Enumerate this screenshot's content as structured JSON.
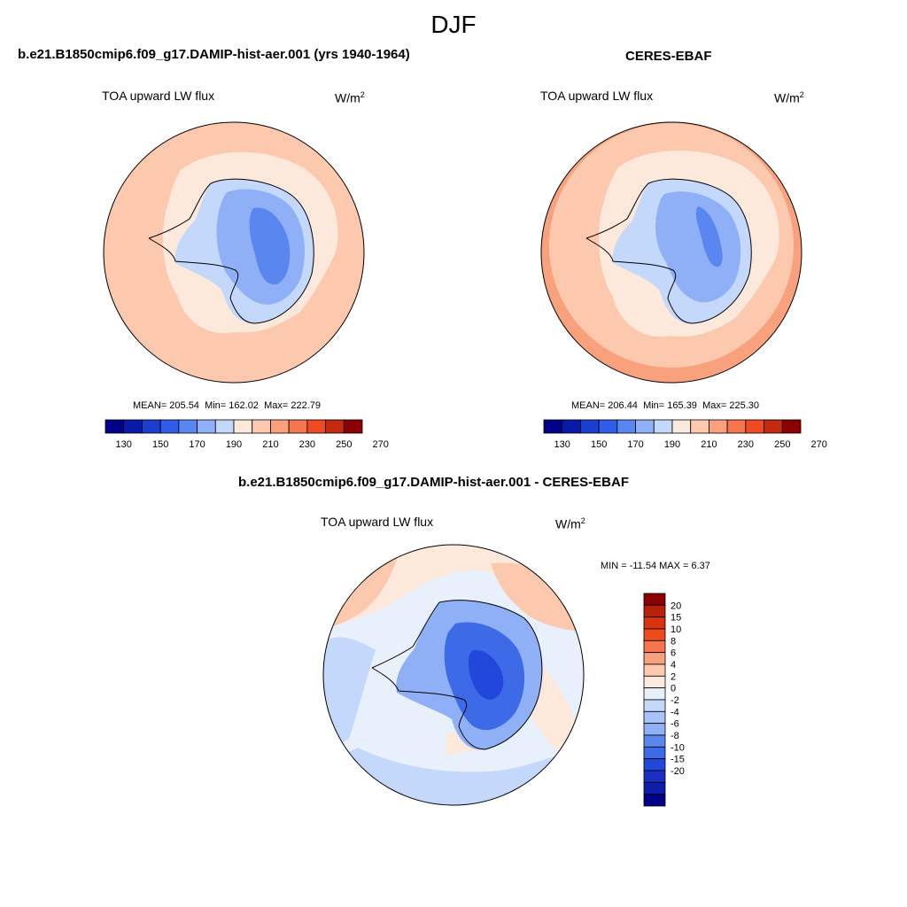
{
  "figure": {
    "title": "DJF"
  },
  "panels": [
    {
      "id": "model",
      "title": "b.e21.B1850cmip6.f09_g17.DAMIP-hist-aer.001 (yrs 1940-1964)",
      "variable": "TOA upward LW flux",
      "units_base": "W/m",
      "units_exp": "2",
      "stats": {
        "mean_label": "MEAN=",
        "mean": "205.54",
        "min_label": "Min=",
        "min": "162.02",
        "max_label": "Max=",
        "max": "222.79"
      }
    },
    {
      "id": "obs",
      "title": "CERES-EBAF",
      "variable": "TOA upward LW flux",
      "units_base": "W/m",
      "units_exp": "2",
      "stats": {
        "mean_label": "MEAN=",
        "mean": "206.44",
        "min_label": "Min=",
        "min": "165.39",
        "max_label": "Max=",
        "max": "225.30"
      }
    },
    {
      "id": "diff",
      "title": "b.e21.B1850cmip6.f09_g17.DAMIP-hist-aer.001 - CERES-EBAF",
      "variable": "TOA upward LW flux",
      "units_base": "W/m",
      "units_exp": "2",
      "stats_text": "MIN = -11.54 MAX =   6.37"
    }
  ],
  "colorbars": {
    "absolute": {
      "colors": [
        "#00008b",
        "#0a1aa8",
        "#1a3ed0",
        "#2f5ce8",
        "#5a86f0",
        "#8fb0f6",
        "#c4d8fb",
        "#fde8dc",
        "#fcc8ae",
        "#f9a07c",
        "#f7764f",
        "#ef4a24",
        "#c42a0f",
        "#8b0000"
      ],
      "tick_labels": [
        "130",
        "150",
        "170",
        "190",
        "210",
        "230",
        "250",
        "270"
      ],
      "tick_edges": [
        1,
        3,
        5,
        7,
        9,
        11,
        13,
        15
      ]
    },
    "difference": {
      "colors_top_to_bottom": [
        "#8b0000",
        "#b52208",
        "#d8330c",
        "#ef4a1a",
        "#f7764f",
        "#f9a07c",
        "#fcc8ae",
        "#fde8dc",
        "#e8f0fb",
        "#c4d8fb",
        "#a9c3f9",
        "#8fb0f6",
        "#5a86f0",
        "#3d6be8",
        "#2148db",
        "#1a2fc2",
        "#0e1ea6",
        "#00008b"
      ],
      "tick_labels": [
        "20",
        "15",
        "10",
        "8",
        "6",
        "4",
        "2",
        "0",
        "-2",
        "-4",
        "-6",
        "-8",
        "-10",
        "-15",
        "-20"
      ]
    }
  }
}
